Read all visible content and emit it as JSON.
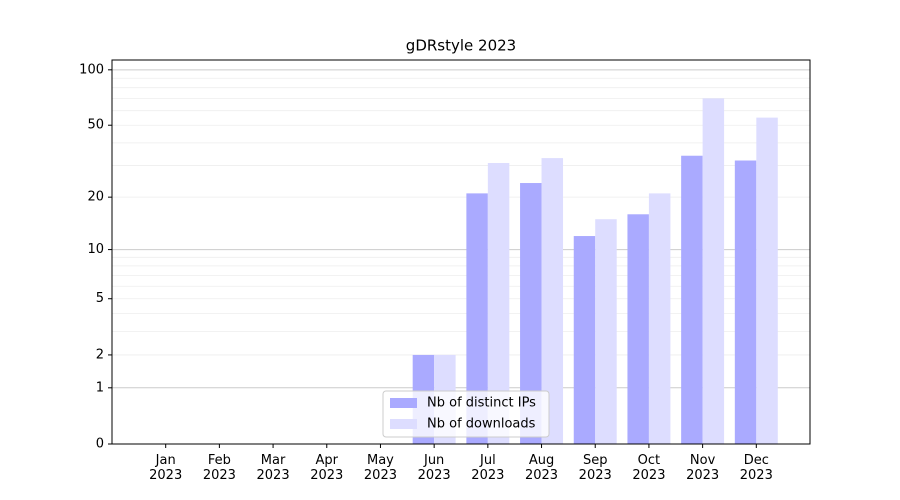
{
  "chart_data": {
    "type": "bar",
    "title": "gDRstyle 2023",
    "categories": [
      "Jan\n2023",
      "Feb\n2023",
      "Mar\n2023",
      "Apr\n2023",
      "May\n2023",
      "Jun\n2023",
      "Jul\n2023",
      "Aug\n2023",
      "Sep\n2023",
      "Oct\n2023",
      "Nov\n2023",
      "Dec\n2023"
    ],
    "series": [
      {
        "name": "Nb of distinct IPs",
        "color": "#aaaaff",
        "values": [
          0,
          0,
          0,
          0,
          0,
          2,
          21,
          24,
          12,
          16,
          34,
          32
        ]
      },
      {
        "name": "Nb of downloads",
        "color": "#ddddff",
        "values": [
          0,
          0,
          0,
          0,
          0,
          2,
          31,
          33,
          15,
          21,
          70,
          55
        ]
      }
    ],
    "yscale": "log1p",
    "ylim": [
      0,
      113
    ],
    "yticks": [
      0,
      1,
      2,
      5,
      10,
      20,
      50,
      100
    ],
    "ygrid_major": [
      1,
      10,
      100
    ],
    "ygrid_minor": [
      2,
      3,
      4,
      5,
      6,
      7,
      8,
      9,
      20,
      30,
      40,
      50,
      60,
      70,
      80,
      90
    ],
    "legend": "lower center"
  }
}
